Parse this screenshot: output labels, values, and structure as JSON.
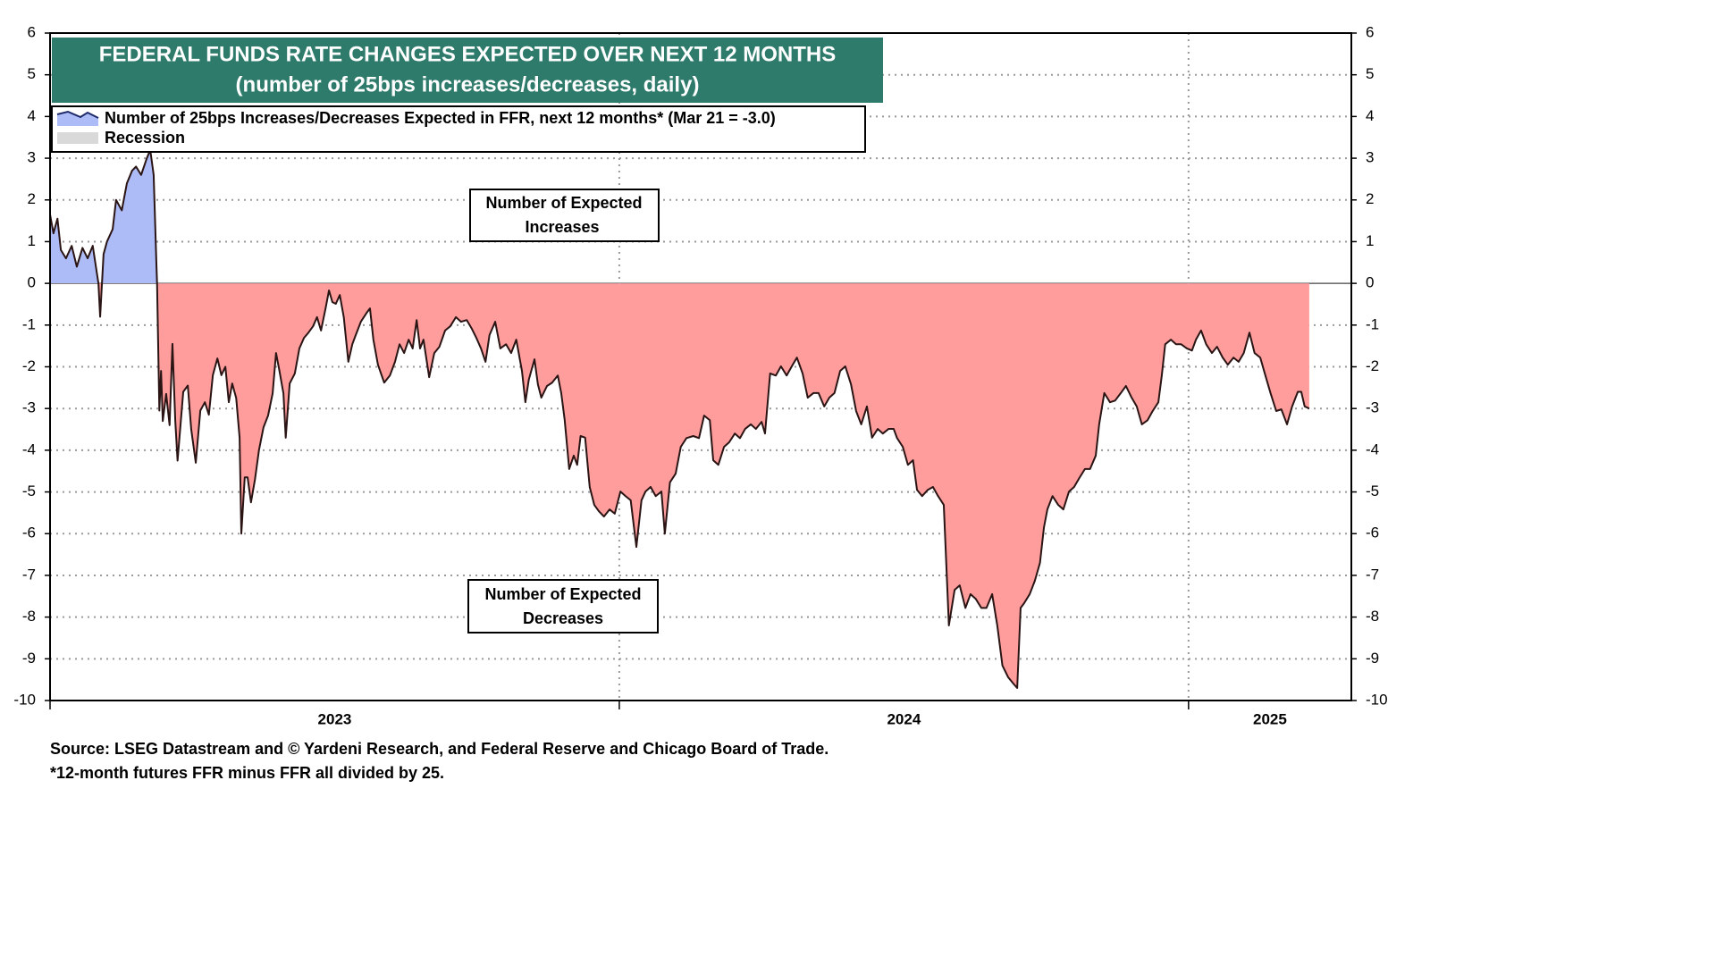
{
  "chart_data": {
    "type": "area",
    "title": "FEDERAL FUNDS RATE CHANGES EXPECTED OVER NEXT 12 MONTHS",
    "subtitle": "(number of 25bps increases/decreases, daily)",
    "title_color": "#2e7b6b",
    "annotations": [
      {
        "lines": [
          "Number of Expected",
          "Increases"
        ]
      },
      {
        "lines": [
          "Number of Expected",
          "Decreases"
        ]
      }
    ],
    "source": "Source: LSEG Datastream and © Yardeni Research, and Federal Reserve and Chicago Board of Trade.",
    "note": "*12-month futures FFR minus FFR all divided by 25.",
    "shading": {
      "name": "Recession",
      "color": "#d9d9d9"
    },
    "fill_colors": {
      "positive": "#adbcf6",
      "negative": "#ff9c9c"
    },
    "xlim": [
      2023,
      2025.286
    ],
    "xticks": [
      2023,
      2024,
      2025
    ],
    "ylim": [
      -10,
      6
    ],
    "yticks": [
      -10,
      -9,
      -8,
      -7,
      -6,
      -5,
      -4,
      -3,
      -2,
      -1,
      0,
      1,
      2,
      3,
      4,
      5,
      6
    ],
    "grid": true,
    "x": [
      2023.0,
      2023.006,
      2023.013,
      2023.019,
      2023.028,
      2023.038,
      2023.047,
      2023.057,
      2023.066,
      2023.075,
      2023.085,
      2023.088,
      2023.094,
      2023.1,
      2023.11,
      2023.116,
      2023.126,
      2023.135,
      2023.144,
      2023.151,
      2023.16,
      2023.17,
      2023.176,
      2023.182,
      2023.187,
      2023.188,
      2023.192,
      2023.195,
      2023.198,
      2023.204,
      2023.21,
      2023.215,
      2023.22,
      2023.224,
      2023.234,
      2023.242,
      2023.248,
      2023.256,
      2023.264,
      2023.272,
      2023.279,
      2023.286,
      2023.294,
      2023.301,
      2023.308,
      2023.314,
      2023.32,
      2023.327,
      2023.333,
      2023.336,
      2023.342,
      2023.347,
      2023.353,
      2023.36,
      2023.367,
      2023.375,
      2023.383,
      2023.391,
      2023.397,
      2023.403,
      2023.41,
      2023.414,
      2023.421,
      2023.43,
      2023.438,
      2023.446,
      2023.454,
      2023.462,
      2023.469,
      2023.476,
      2023.484,
      2023.49,
      2023.496,
      2023.502,
      2023.509,
      2023.516,
      2023.524,
      2023.531,
      2023.537,
      2023.546,
      2023.556,
      2023.562,
      2023.568,
      2023.576,
      2023.587,
      2023.597,
      2023.606,
      2023.614,
      2023.622,
      2023.63,
      2023.637,
      2023.644,
      2023.65,
      2023.656,
      2023.666,
      2023.675,
      2023.684,
      2023.694,
      2023.703,
      2023.713,
      2023.722,
      2023.732,
      2023.741,
      2023.749,
      2023.757,
      2023.765,
      2023.772,
      2023.782,
      2023.791,
      2023.801,
      2023.81,
      2023.819,
      2023.829,
      2023.835,
      2023.841,
      2023.851,
      2023.857,
      2023.863,
      2023.873,
      2023.882,
      2023.892,
      2023.898,
      2023.904,
      2023.912,
      2023.92,
      2023.926,
      2023.932,
      2023.94,
      2023.948,
      2023.956,
      2023.964,
      2023.973,
      2023.983,
      2023.992,
      2024.002,
      2024.011,
      2024.02,
      2024.03,
      2024.039,
      2024.046,
      2024.055,
      2024.064,
      2024.074,
      2024.08,
      2024.089,
      2024.099,
      2024.108,
      2024.118,
      2024.13,
      2024.14,
      2024.149,
      2024.159,
      2024.165,
      2024.174,
      2024.184,
      2024.193,
      2024.203,
      2024.212,
      2024.221,
      2024.231,
      2024.24,
      2024.25,
      2024.256,
      2024.265,
      2024.275,
      2024.284,
      2024.294,
      2024.303,
      2024.312,
      2024.322,
      2024.331,
      2024.341,
      2024.35,
      2024.36,
      2024.369,
      2024.378,
      2024.388,
      2024.397,
      2024.407,
      2024.416,
      2024.425,
      2024.435,
      2024.444,
      2024.454,
      2024.463,
      2024.473,
      2024.482,
      2024.488,
      2024.498,
      2024.507,
      2024.516,
      2024.523,
      2024.532,
      2024.542,
      2024.551,
      2024.56,
      2024.57,
      2024.579,
      2024.589,
      2024.598,
      2024.608,
      2024.617,
      2024.626,
      2024.636,
      2024.645,
      2024.655,
      2024.664,
      2024.673,
      2024.683,
      2024.692,
      2024.699,
      2024.705,
      2024.711,
      2024.721,
      2024.73,
      2024.739,
      2024.746,
      2024.752,
      2024.761,
      2024.771,
      2024.78,
      2024.79,
      2024.799,
      2024.808,
      2024.818,
      2024.827,
      2024.837,
      2024.843,
      2024.852,
      2024.862,
      2024.871,
      2024.881,
      2024.89,
      2024.9,
      2024.909,
      2024.918,
      2024.928,
      2024.937,
      2024.947,
      2024.953,
      2024.959,
      2024.969,
      2024.978,
      2024.987,
      2024.997,
      2025.006,
      2025.013,
      2025.022,
      2025.031,
      2025.041,
      2025.05,
      2025.06,
      2025.069,
      2025.079,
      2025.088,
      2025.097,
      2025.107,
      2025.116,
      2025.126,
      2025.135,
      2025.144,
      2025.154,
      2025.163,
      2025.173,
      2025.182,
      2025.192,
      2025.198,
      2025.204,
      2025.212
    ],
    "series": [
      {
        "name": "Number of 25bps Increases/Decreases Expected in FFR, next 12 months* (Mar 21 = -3.0)",
        "color": "#2a1414",
        "values": [
          1.65,
          1.2,
          1.55,
          0.8,
          0.6,
          0.9,
          0.4,
          0.85,
          0.6,
          0.9,
          0.0,
          -0.8,
          0.7,
          1.0,
          1.3,
          2.0,
          1.75,
          2.4,
          2.7,
          2.8,
          2.6,
          3.0,
          3.2,
          2.6,
          0.4,
          0.0,
          -3.05,
          -2.1,
          -3.3,
          -2.65,
          -3.4,
          -1.45,
          -3.3,
          -4.25,
          -2.6,
          -2.45,
          -3.5,
          -4.3,
          -3.05,
          -2.85,
          -3.15,
          -2.2,
          -1.8,
          -2.2,
          -2.0,
          -2.85,
          -2.4,
          -2.75,
          -3.7,
          -6.0,
          -4.65,
          -4.65,
          -5.25,
          -4.7,
          -4.0,
          -3.45,
          -3.17,
          -2.64,
          -1.67,
          -2.1,
          -2.64,
          -3.7,
          -2.4,
          -2.16,
          -1.56,
          -1.31,
          -1.18,
          -1.03,
          -0.81,
          -1.13,
          -0.6,
          -0.17,
          -0.45,
          -0.49,
          -0.28,
          -0.81,
          -1.88,
          -1.46,
          -1.24,
          -0.92,
          -0.71,
          -0.6,
          -1.35,
          -1.95,
          -2.38,
          -2.21,
          -1.88,
          -1.46,
          -1.67,
          -1.35,
          -1.56,
          -0.88,
          -1.56,
          -1.35,
          -2.25,
          -1.67,
          -1.52,
          -1.13,
          -1.03,
          -0.81,
          -0.92,
          -0.88,
          -1.09,
          -1.31,
          -1.56,
          -1.88,
          -1.24,
          -0.92,
          -1.56,
          -1.46,
          -1.67,
          -1.35,
          -2.1,
          -2.85,
          -2.31,
          -1.82,
          -2.42,
          -2.74,
          -2.46,
          -2.38,
          -2.21,
          -2.63,
          -3.27,
          -4.45,
          -4.13,
          -4.35,
          -3.66,
          -3.7,
          -4.88,
          -5.31,
          -5.46,
          -5.59,
          -5.42,
          -5.52,
          -4.99,
          -5.1,
          -5.2,
          -6.32,
          -5.2,
          -4.99,
          -4.88,
          -5.1,
          -4.99,
          -6.0,
          -4.77,
          -4.56,
          -3.92,
          -3.71,
          -3.66,
          -3.71,
          -3.17,
          -3.28,
          -4.24,
          -4.35,
          -3.92,
          -3.81,
          -3.6,
          -3.71,
          -3.49,
          -3.38,
          -3.49,
          -3.32,
          -3.6,
          -2.16,
          -2.21,
          -1.99,
          -2.21,
          -1.99,
          -1.78,
          -2.16,
          -2.74,
          -2.63,
          -2.63,
          -2.95,
          -2.74,
          -2.63,
          -2.1,
          -1.99,
          -2.42,
          -3.06,
          -3.38,
          -2.95,
          -3.7,
          -3.49,
          -3.6,
          -3.49,
          -3.49,
          -3.71,
          -3.92,
          -4.35,
          -4.24,
          -4.95,
          -5.1,
          -4.95,
          -4.88,
          -5.1,
          -5.31,
          -8.2,
          -7.35,
          -7.24,
          -7.78,
          -7.45,
          -7.56,
          -7.78,
          -7.78,
          -7.45,
          -8.2,
          -9.16,
          -9.44,
          -9.59,
          -9.7,
          -7.78,
          -7.67,
          -7.45,
          -7.13,
          -6.7,
          -5.85,
          -5.42,
          -5.1,
          -5.31,
          -5.42,
          -4.99,
          -4.88,
          -4.67,
          -4.45,
          -4.45,
          -4.13,
          -3.38,
          -2.63,
          -2.85,
          -2.81,
          -2.63,
          -2.46,
          -2.74,
          -2.95,
          -3.38,
          -3.28,
          -3.06,
          -2.85,
          -2.21,
          -1.46,
          -1.35,
          -1.46,
          -1.46,
          -1.56,
          -1.61,
          -1.35,
          -1.13,
          -1.46,
          -1.67,
          -1.52,
          -1.78,
          -1.95,
          -1.78,
          -1.88,
          -1.67,
          -1.18,
          -1.67,
          -1.78,
          -2.21,
          -2.63,
          -3.06,
          -3.02,
          -3.38,
          -2.95,
          -2.6,
          -2.6,
          -2.95,
          -3.0
        ]
      }
    ]
  }
}
